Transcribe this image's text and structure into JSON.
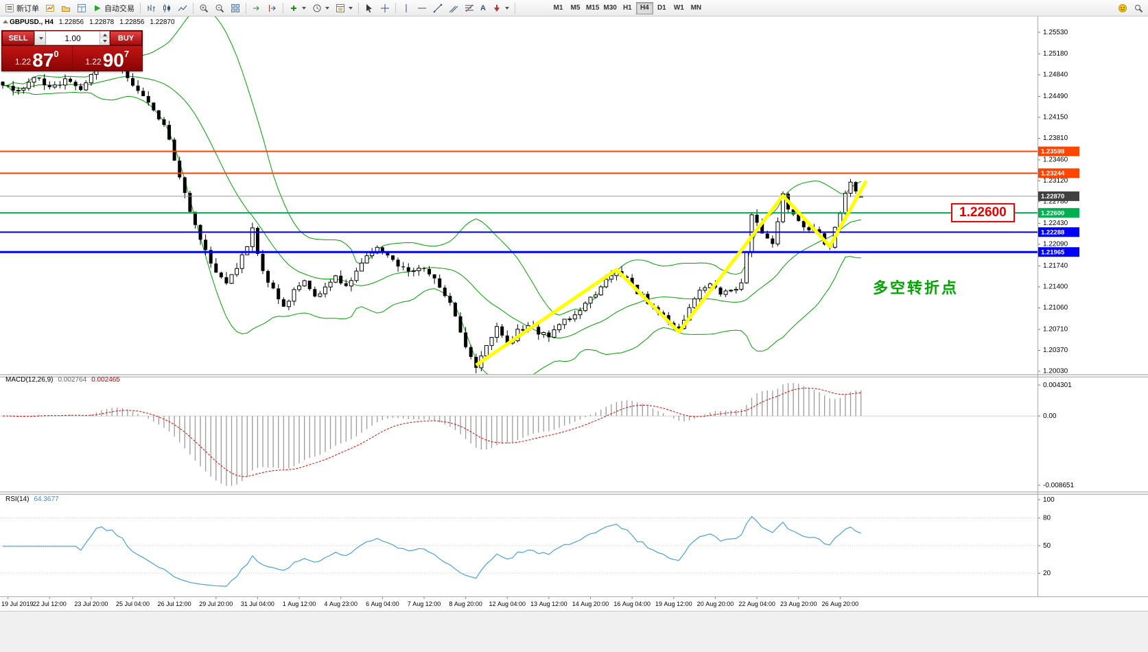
{
  "toolbar": {
    "new_order_label": "新订单",
    "auto_trading_label": "自动交易",
    "text_tool_glyph": "A",
    "timeframes": [
      "M1",
      "M5",
      "M15",
      "M30",
      "H1",
      "H4",
      "D1",
      "W1",
      "MN"
    ],
    "active_timeframe": "H4"
  },
  "symbol_info": {
    "symbol": "GBPUSD., H4",
    "open": "1.22856",
    "high": "1.22878",
    "low": "1.22856",
    "close": "1.22870"
  },
  "trade_panel": {
    "sell_label": "SELL",
    "buy_label": "BUY",
    "volume": "1.00",
    "sell_price_prefix": "1.22",
    "sell_price_big": "87",
    "sell_price_sup": "0",
    "buy_price_prefix": "1.22",
    "buy_price_big": "90",
    "buy_price_sup": "7"
  },
  "annotations": {
    "price_box_label": "1.22600",
    "price_box_color": "#e80000",
    "turning_point_label": "多空转折点",
    "turning_point_color": "#00a400"
  },
  "indicators": {
    "macd": {
      "label": "MACD(12,26,9)",
      "value1": "0.002764",
      "value2": "0.002465",
      "scale": [
        "0.004301",
        "0.00",
        "-0.008651"
      ]
    },
    "rsi": {
      "label": "RSI(14)",
      "value": "64.3677",
      "scale": [
        100,
        80,
        50,
        20
      ],
      "levels": [
        80,
        50,
        20
      ]
    }
  },
  "chart_data": {
    "type": "candlestick",
    "symbol": "GBPUSD",
    "timeframe": "H4",
    "bars": 166,
    "seed": 20190826,
    "price_axis_ticks": [
      "1.25530",
      "1.25180",
      "1.24840",
      "1.24490",
      "1.24150",
      "1.23810",
      "1.23460",
      "1.23120",
      "1.22780",
      "1.22430",
      "1.22090",
      "1.21740",
      "1.21400",
      "1.21060",
      "1.20710",
      "1.20370",
      "1.20030"
    ],
    "time_axis_labels": [
      "19 Jul 2019",
      "22 Jul 12:00",
      "23 Jul 20:00",
      "25 Jul 04:00",
      "26 Jul 12:00",
      "29 Jul 20:00",
      "31 Jul 04:00",
      "1 Aug 12:00",
      "4 Aug 23:00",
      "6 Aug 04:00",
      "7 Aug 12:00",
      "8 Aug 20:00",
      "12 Aug 04:00",
      "13 Aug 12:00",
      "14 Aug 20:00",
      "16 Aug 04:00",
      "19 Aug 12:00",
      "20 Aug 20:00",
      "22 Aug 04:00",
      "23 Aug 20:00",
      "26 Aug 20:00"
    ],
    "close_waypoints": [
      [
        0,
        1.2468
      ],
      [
        3,
        1.2455
      ],
      [
        6,
        1.2485
      ],
      [
        9,
        1.246
      ],
      [
        12,
        1.2475
      ],
      [
        15,
        1.2455
      ],
      [
        18,
        1.2505
      ],
      [
        21,
        1.2512
      ],
      [
        24,
        1.248
      ],
      [
        27,
        1.2445
      ],
      [
        29,
        1.2425
      ],
      [
        31,
        1.2405
      ],
      [
        33,
        1.235
      ],
      [
        35,
        1.229
      ],
      [
        37,
        1.224
      ],
      [
        39,
        1.2195
      ],
      [
        41,
        1.2165
      ],
      [
        43,
        1.215
      ],
      [
        45,
        1.217
      ],
      [
        47,
        1.2205
      ],
      [
        48,
        1.2235
      ],
      [
        49,
        1.219
      ],
      [
        51,
        1.215
      ],
      [
        53,
        1.2125
      ],
      [
        54,
        1.2105
      ],
      [
        56,
        1.2135
      ],
      [
        58,
        1.215
      ],
      [
        60,
        1.212
      ],
      [
        62,
        1.214
      ],
      [
        64,
        1.2155
      ],
      [
        66,
        1.214
      ],
      [
        68,
        1.2165
      ],
      [
        70,
        1.2185
      ],
      [
        72,
        1.22
      ],
      [
        74,
        1.219
      ],
      [
        76,
        1.2175
      ],
      [
        78,
        1.2162
      ],
      [
        80,
        1.217
      ],
      [
        82,
        1.2165
      ],
      [
        84,
        1.214
      ],
      [
        86,
        1.2118
      ],
      [
        88,
        1.2062
      ],
      [
        90,
        1.203
      ],
      [
        91,
        1.2012
      ],
      [
        93,
        1.2045
      ],
      [
        95,
        1.2072
      ],
      [
        97,
        1.2048
      ],
      [
        99,
        1.2066
      ],
      [
        101,
        1.208
      ],
      [
        103,
        1.2068
      ],
      [
        105,
        1.2058
      ],
      [
        107,
        1.2078
      ],
      [
        109,
        1.209
      ],
      [
        111,
        1.21
      ],
      [
        113,
        1.2122
      ],
      [
        115,
        1.214
      ],
      [
        117,
        1.2158
      ],
      [
        118,
        1.2168
      ],
      [
        120,
        1.215
      ],
      [
        122,
        1.2132
      ],
      [
        124,
        1.2118
      ],
      [
        126,
        1.2098
      ],
      [
        128,
        1.2082
      ],
      [
        130,
        1.2068
      ],
      [
        132,
        1.2105
      ],
      [
        134,
        1.2132
      ],
      [
        136,
        1.2142
      ],
      [
        138,
        1.2126
      ],
      [
        140,
        1.2132
      ],
      [
        142,
        1.215
      ],
      [
        143,
        1.22
      ],
      [
        144,
        1.2262
      ],
      [
        145,
        1.224
      ],
      [
        147,
        1.2222
      ],
      [
        148,
        1.2205
      ],
      [
        149,
        1.225
      ],
      [
        150,
        1.2288
      ],
      [
        151,
        1.2268
      ],
      [
        153,
        1.2248
      ],
      [
        155,
        1.2235
      ],
      [
        157,
        1.2222
      ],
      [
        159,
        1.2206
      ],
      [
        160,
        1.2232
      ],
      [
        161,
        1.2262
      ],
      [
        162,
        1.2295
      ],
      [
        163,
        1.2308
      ],
      [
        164,
        1.23
      ],
      [
        165,
        1.2287
      ]
    ],
    "last_bar": {
      "o": 1.22856,
      "h": 1.22878,
      "l": 1.22856,
      "c": 1.2287
    },
    "hlines": [
      {
        "price": 1.23598,
        "label": "1.23598",
        "color": "#ff4500",
        "width": 2
      },
      {
        "price": 1.23244,
        "label": "1.23244",
        "color": "#ff4500",
        "width": 2
      },
      {
        "price": 1.226,
        "label": "1.22600",
        "color": "#00b050",
        "width": 2
      },
      {
        "price": 1.22288,
        "label": "1.22288",
        "color": "#0000ff",
        "width": 2
      },
      {
        "price": 1.21965,
        "label": "1.21965",
        "color": "#0000ff",
        "width": 3
      }
    ],
    "current_price": {
      "value": 1.2287,
      "label": "1.22870",
      "color": "#404040"
    },
    "zigzag": {
      "color": "#ffff00",
      "width": 5,
      "points": [
        [
          91,
          1.2013
        ],
        [
          118,
          1.2168
        ],
        [
          130,
          1.2067
        ],
        [
          150,
          1.2288
        ],
        [
          159,
          1.2206
        ],
        [
          166,
          1.2312
        ]
      ]
    },
    "bollinger": {
      "period": 20,
      "deviation": 2,
      "color": "#00a000"
    },
    "candle_colors": {
      "bull_fill": "#ffffff",
      "bear_fill": "#000000",
      "outline": "#000000"
    },
    "macd_style": {
      "histogram_color": "#9a9a9a",
      "signal_color": "#e00000"
    },
    "rsi_style": {
      "line_color": "#4aa0dc"
    }
  }
}
